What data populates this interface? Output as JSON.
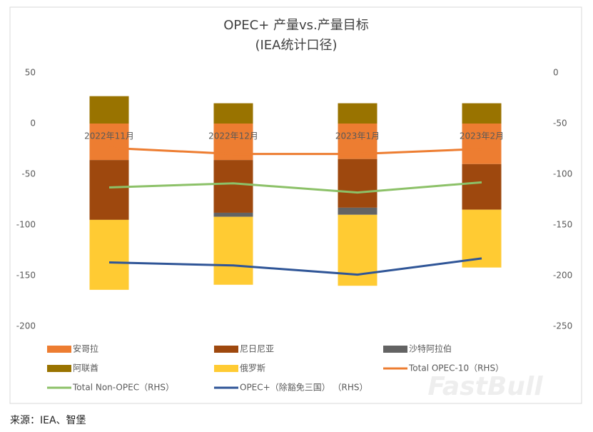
{
  "chart_data": {
    "type": "bar",
    "title": "OPEC+ 产量vs.产量目标",
    "subtitle": "(IEA统计口径)",
    "categories": [
      "2022年11月",
      "2022年12月",
      "2023年1月",
      "2023年2月"
    ],
    "series": [
      {
        "name": "安哥拉",
        "type": "bar",
        "color": "#ed7d31",
        "values": [
          -36,
          -36,
          -35,
          -40
        ]
      },
      {
        "name": "尼日尼亚",
        "type": "bar",
        "color": "#9e480e",
        "values": [
          -59,
          -52,
          -48,
          -45
        ]
      },
      {
        "name": "沙特阿拉伯",
        "type": "bar",
        "color": "#636363",
        "values": [
          0,
          -4,
          -7,
          0
        ]
      },
      {
        "name": "阿联酋",
        "type": "bar",
        "color": "#997300",
        "values": [
          27,
          20,
          20,
          20
        ]
      },
      {
        "name": "俄罗斯",
        "type": "bar",
        "color": "#ffcb33",
        "values": [
          -69,
          -67,
          -70,
          -57
        ]
      },
      {
        "name": "Total OPEC-10（RHS）",
        "type": "line",
        "axis": "y2",
        "color": "#ed7d31",
        "values": [
          -74,
          -80,
          -80,
          -75
        ]
      },
      {
        "name": "Total Non-OPEC（RHS）",
        "type": "line",
        "axis": "y2",
        "color": "#8cc168",
        "values": [
          -113,
          -109,
          -118,
          -108
        ]
      },
      {
        "name": "OPEC+（除豁免三国）  （RHS）",
        "type": "line",
        "axis": "y2",
        "color": "#2f5597",
        "values": [
          -187,
          -190,
          -199,
          -183
        ]
      }
    ],
    "ylim": [
      -200,
      50
    ],
    "yticks": [
      50,
      0,
      -50,
      -100,
      -150,
      -200
    ],
    "y2lim": [
      -250,
      0
    ],
    "y2ticks": [
      0,
      -50,
      -100,
      -150,
      -200,
      -250
    ],
    "grid": false,
    "legend": "bottom"
  },
  "watermark": "FastBull",
  "source": "来源：IEA、智堡"
}
